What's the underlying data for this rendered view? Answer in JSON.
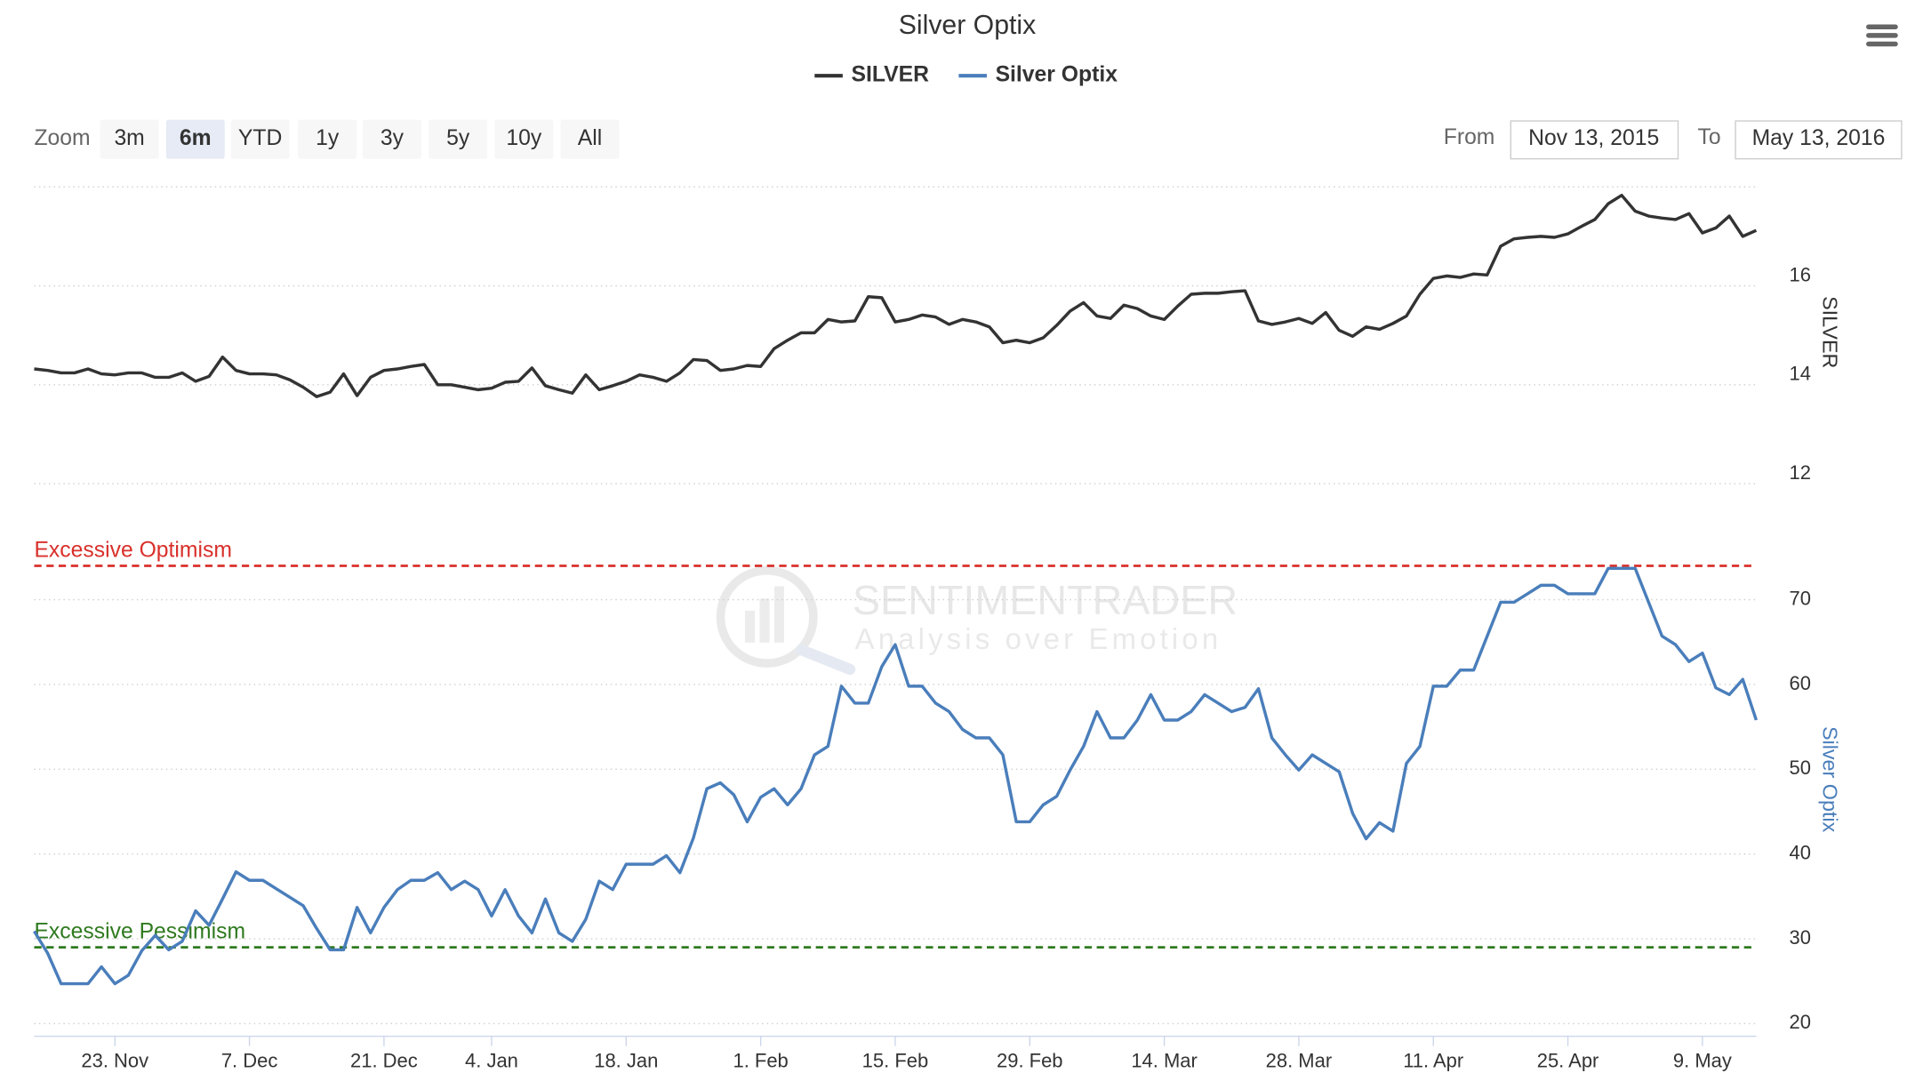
{
  "chart_data": {
    "type": "line",
    "title": "Silver Optix",
    "x": [
      "Nov 13",
      "Nov 16",
      "Nov 17",
      "Nov 18",
      "Nov 19",
      "Nov 20",
      "Nov 23",
      "Nov 24",
      "Nov 25",
      "Nov 26",
      "Nov 27",
      "Nov 30",
      "Dec 1",
      "Dec 2",
      "Dec 3",
      "Dec 4",
      "Dec 7",
      "Dec 8",
      "Dec 9",
      "Dec 10",
      "Dec 11",
      "Dec 14",
      "Dec 15",
      "Dec 16",
      "Dec 17",
      "Dec 18",
      "Dec 21",
      "Dec 22",
      "Dec 23",
      "Dec 24",
      "Dec 28",
      "Dec 29",
      "Dec 30",
      "Dec 31",
      "Jan 4",
      "Jan 5",
      "Jan 6",
      "Jan 7",
      "Jan 8",
      "Jan 11",
      "Jan 12",
      "Jan 13",
      "Jan 14",
      "Jan 15",
      "Jan 18",
      "Jan 19",
      "Jan 20",
      "Jan 21",
      "Jan 22",
      "Jan 25",
      "Jan 26",
      "Jan 27",
      "Jan 28",
      "Jan 29",
      "Feb 1",
      "Feb 2",
      "Feb 3",
      "Feb 4",
      "Feb 5",
      "Feb 8",
      "Feb 9",
      "Feb 10",
      "Feb 11",
      "Feb 12",
      "Feb 15",
      "Feb 16",
      "Feb 17",
      "Feb 18",
      "Feb 19",
      "Feb 22",
      "Feb 23",
      "Feb 24",
      "Feb 25",
      "Feb 26",
      "Feb 29",
      "Mar 1",
      "Mar 2",
      "Mar 3",
      "Mar 4",
      "Mar 7",
      "Mar 8",
      "Mar 9",
      "Mar 10",
      "Mar 11",
      "Mar 14",
      "Mar 15",
      "Mar 16",
      "Mar 17",
      "Mar 18",
      "Mar 21",
      "Mar 22",
      "Mar 23",
      "Mar 24",
      "Mar 25",
      "Mar 28",
      "Mar 29",
      "Mar 30",
      "Mar 31",
      "Apr 1",
      "Apr 4",
      "Apr 5",
      "Apr 6",
      "Apr 7",
      "Apr 8",
      "Apr 11",
      "Apr 12",
      "Apr 13",
      "Apr 14",
      "Apr 15",
      "Apr 18",
      "Apr 19",
      "Apr 20",
      "Apr 21",
      "Apr 22",
      "Apr 25",
      "Apr 26",
      "Apr 27",
      "Apr 28",
      "Apr 29",
      "May 2",
      "May 3",
      "May 4",
      "May 5",
      "May 6",
      "May 9",
      "May 10",
      "May 11",
      "May 12",
      "May 13"
    ],
    "xticks": [
      {
        "value": "Nov 23",
        "label": "23. Nov"
      },
      {
        "value": "Dec 7",
        "label": "7. Dec"
      },
      {
        "value": "Dec 21",
        "label": "21. Dec"
      },
      {
        "value": "Jan 4",
        "label": "4. Jan"
      },
      {
        "value": "Jan 18",
        "label": "18. Jan"
      },
      {
        "value": "Feb 1",
        "label": "1. Feb"
      },
      {
        "value": "Feb 15",
        "label": "15. Feb"
      },
      {
        "value": "Feb 29",
        "label": "29. Feb"
      },
      {
        "value": "Mar 14",
        "label": "14. Mar"
      },
      {
        "value": "Mar 28",
        "label": "28. Mar"
      },
      {
        "value": "Apr 11",
        "label": "11. Apr"
      },
      {
        "value": "Apr 25",
        "label": "25. Apr"
      },
      {
        "value": "May 9",
        "label": "9. May"
      }
    ],
    "series": [
      {
        "name": "SILVER",
        "color": "#333333",
        "axis": "y",
        "values": [
          14.32,
          14.29,
          14.24,
          14.24,
          14.32,
          14.22,
          14.2,
          14.24,
          14.24,
          14.15,
          14.15,
          14.24,
          14.07,
          14.17,
          14.56,
          14.29,
          14.22,
          14.22,
          14.2,
          14.1,
          13.95,
          13.76,
          13.85,
          14.22,
          13.78,
          14.15,
          14.29,
          14.32,
          14.37,
          14.41,
          14.0,
          14.0,
          13.95,
          13.9,
          13.93,
          14.05,
          14.07,
          14.34,
          13.98,
          13.9,
          13.83,
          14.2,
          13.9,
          13.98,
          14.07,
          14.2,
          14.15,
          14.07,
          14.24,
          14.51,
          14.49,
          14.29,
          14.32,
          14.39,
          14.37,
          14.73,
          14.9,
          15.05,
          15.05,
          15.32,
          15.27,
          15.29,
          15.78,
          15.76,
          15.27,
          15.32,
          15.41,
          15.37,
          15.22,
          15.32,
          15.27,
          15.17,
          14.85,
          14.9,
          14.85,
          14.95,
          15.2,
          15.49,
          15.66,
          15.39,
          15.34,
          15.61,
          15.54,
          15.39,
          15.32,
          15.59,
          15.83,
          15.85,
          15.85,
          15.88,
          15.9,
          15.29,
          15.22,
          15.27,
          15.34,
          15.24,
          15.46,
          15.1,
          14.98,
          15.17,
          15.12,
          15.24,
          15.39,
          15.83,
          16.15,
          16.2,
          16.17,
          16.24,
          16.22,
          16.8,
          16.95,
          16.98,
          17.0,
          16.98,
          17.05,
          17.2,
          17.34,
          17.66,
          17.83,
          17.51,
          17.41,
          17.37,
          17.34,
          17.46,
          17.07,
          17.17,
          17.41,
          17.0,
          17.12
        ]
      },
      {
        "name": "Silver Optix",
        "color": "#4a7ebb",
        "axis": "y2",
        "values": [
          30.9,
          28.3,
          24.7,
          24.7,
          24.7,
          26.7,
          24.7,
          25.7,
          28.6,
          30.4,
          28.7,
          29.7,
          33.3,
          31.6,
          34.7,
          37.9,
          36.9,
          36.9,
          35.9,
          34.9,
          33.9,
          31.2,
          28.7,
          28.7,
          33.7,
          30.7,
          33.7,
          35.8,
          36.9,
          36.9,
          37.8,
          35.8,
          36.8,
          35.8,
          32.7,
          35.8,
          32.7,
          30.7,
          34.7,
          30.7,
          29.7,
          32.3,
          36.8,
          35.8,
          38.8,
          38.8,
          38.8,
          39.8,
          37.8,
          41.9,
          47.7,
          48.4,
          47.0,
          43.8,
          46.7,
          47.7,
          45.8,
          47.7,
          51.7,
          52.7,
          59.8,
          57.8,
          57.8,
          62.1,
          64.7,
          59.8,
          59.8,
          57.8,
          56.8,
          54.7,
          53.7,
          53.7,
          51.7,
          43.8,
          43.8,
          45.8,
          46.8,
          49.9,
          52.7,
          56.8,
          53.7,
          53.7,
          55.8,
          58.8,
          55.8,
          55.8,
          56.8,
          58.8,
          57.8,
          56.8,
          57.3,
          59.5,
          53.7,
          51.7,
          49.9,
          51.7,
          50.7,
          49.7,
          44.8,
          41.8,
          43.7,
          42.7,
          50.7,
          52.7,
          59.8,
          59.8,
          61.7,
          61.7,
          65.7,
          69.7,
          69.7,
          70.7,
          71.7,
          71.7,
          70.7,
          70.7,
          70.7,
          73.7,
          73.7,
          73.7,
          69.7,
          65.7,
          64.7,
          62.7,
          63.7,
          59.6,
          58.8,
          60.6,
          55.8
        ]
      }
    ],
    "ylabel": "SILVER",
    "ylim": [
      12,
      18
    ],
    "yticks": [
      12,
      14,
      16
    ],
    "y2label": "Silver Optix",
    "y2lim": [
      18.5,
      79
    ],
    "y2ticks": [
      20,
      30,
      40,
      50,
      60,
      70
    ],
    "plot_lines": [
      {
        "label": "Excessive Optimism",
        "value": 74,
        "axis": "y2",
        "color": "#d9302b"
      },
      {
        "label": "Excessive Pessimism",
        "value": 29,
        "axis": "y2",
        "color": "#2f7a1f"
      }
    ],
    "grid": true
  },
  "ui": {
    "zoom_label": "Zoom",
    "zoom_buttons": [
      "3m",
      "6m",
      "YTD",
      "1y",
      "3y",
      "5y",
      "10y",
      "All"
    ],
    "selected_zoom": 1,
    "from_label": "From",
    "from": "Nov 13, 2015",
    "to_label": "To",
    "to": "May 13, 2016",
    "watermark": {
      "name": "SENTIMENTRADER",
      "tagline": "Analysis over Emotion"
    }
  }
}
